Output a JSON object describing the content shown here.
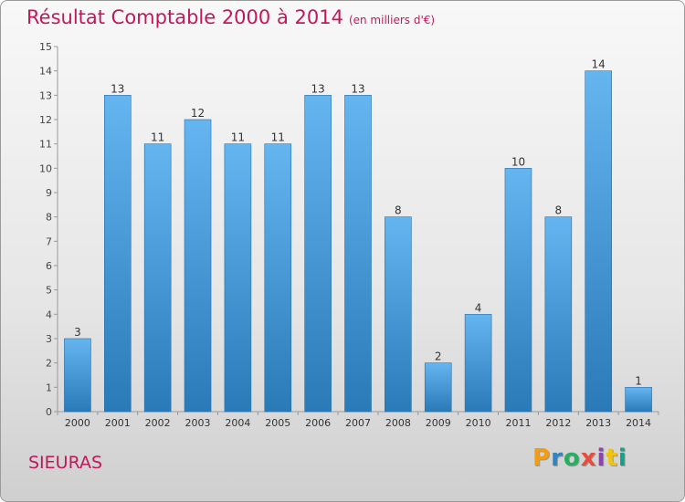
{
  "header": {
    "title": "Résultat Comptable 2000 à 2014",
    "unit": "(en milliers d'€)"
  },
  "footer": {
    "commune": "SIEURAS",
    "brand": "Proxiti"
  },
  "colors": {
    "bar_light": "#64b5f0",
    "bar_dark": "#2a7ab8",
    "title": "#c2185b"
  },
  "chart_data": {
    "type": "bar",
    "title": "Résultat Comptable 2000 à 2014",
    "subtitle": "(en milliers d'€)",
    "xlabel": "",
    "ylabel": "",
    "categories": [
      "2000",
      "2001",
      "2002",
      "2003",
      "2004",
      "2005",
      "2006",
      "2007",
      "2008",
      "2009",
      "2010",
      "2011",
      "2012",
      "2013",
      "2014"
    ],
    "values": [
      3,
      13,
      11,
      12,
      11,
      11,
      13,
      13,
      8,
      2,
      4,
      10,
      8,
      14,
      1
    ],
    "ylim": [
      0,
      15
    ],
    "yticks": [
      "0",
      "1",
      "2",
      "3",
      "4",
      "5",
      "6",
      "7",
      "8",
      "9",
      "10",
      "11",
      "12",
      "13",
      "14",
      "15"
    ],
    "grid": false
  }
}
